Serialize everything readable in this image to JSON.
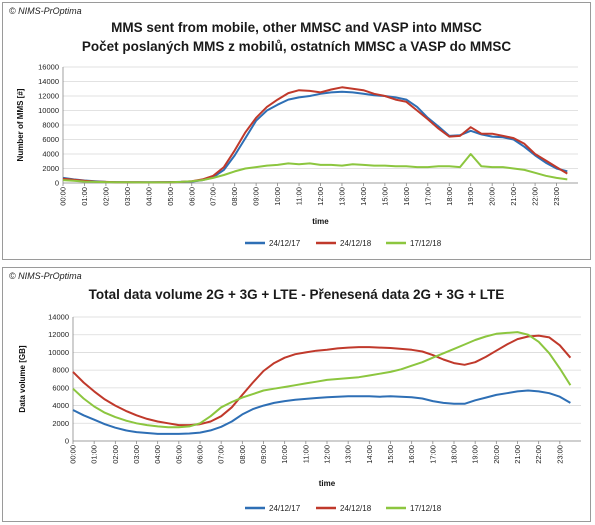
{
  "chart_data": [
    {
      "type": "line",
      "copyright": "© NIMS-PrOptima",
      "title": "MMS sent from mobile, other MMSC and VASP into MMSC",
      "subtitle": "Počet poslaných MMS z mobilů, ostatních MMSC a VASP do MMSC",
      "xlabel": "time",
      "ylabel": "Number of MMS [#]",
      "ylim": [
        0,
        16000
      ],
      "y_ticks": [
        "0",
        "2000",
        "4000",
        "6000",
        "8000",
        "10000",
        "12000",
        "14000",
        "16000"
      ],
      "x_ticks": [
        "00:00",
        "01:00",
        "02:00",
        "03:00",
        "04:00",
        "05:00",
        "06:00",
        "07:00",
        "08:00",
        "09:00",
        "10:00",
        "11:00",
        "12:00",
        "13:00",
        "14:00",
        "15:00",
        "16:00",
        "17:00",
        "18:00",
        "19:00",
        "20:00",
        "21:00",
        "22:00",
        "23:00"
      ],
      "grid": true,
      "legend_position": "bottom",
      "x": [
        0,
        0.5,
        1,
        1.5,
        2,
        2.5,
        3,
        3.5,
        4,
        4.5,
        5,
        5.5,
        6,
        6.5,
        7,
        7.5,
        8,
        8.5,
        9,
        9.5,
        10,
        10.5,
        11,
        11.5,
        12,
        12.5,
        13,
        13.5,
        14,
        14.5,
        15,
        15.5,
        16,
        16.5,
        17,
        17.5,
        18,
        18.5,
        19,
        19.5,
        20,
        20.5,
        21,
        21.5,
        22,
        22.5,
        23,
        23.5
      ],
      "series": [
        {
          "name": "24/12/17",
          "color": "#2e6fb5",
          "values": [
            700,
            500,
            350,
            250,
            150,
            120,
            100,
            100,
            100,
            100,
            120,
            150,
            200,
            400,
            800,
            1800,
            3800,
            6200,
            8600,
            10000,
            10800,
            11500,
            11800,
            12000,
            12300,
            12500,
            12600,
            12500,
            12300,
            12100,
            12000,
            11800,
            11500,
            10500,
            9000,
            7800,
            6500,
            6600,
            7200,
            6700,
            6400,
            6300,
            6000,
            5000,
            3800,
            2800,
            2000,
            1600
          ]
        },
        {
          "name": "24/12/18",
          "color": "#c0392b",
          "values": [
            600,
            450,
            300,
            200,
            150,
            100,
            100,
            90,
            80,
            90,
            100,
            150,
            250,
            500,
            1000,
            2200,
            4500,
            7000,
            9000,
            10500,
            11500,
            12400,
            12800,
            12700,
            12500,
            12900,
            13200,
            13000,
            12800,
            12300,
            12000,
            11500,
            11200,
            10000,
            8800,
            7500,
            6400,
            6500,
            7700,
            6800,
            6800,
            6500,
            6200,
            5400,
            4000,
            3100,
            2200,
            1300
          ]
        },
        {
          "name": "17/12/18",
          "color": "#8cc63f",
          "values": [
            400,
            300,
            200,
            150,
            120,
            100,
            90,
            80,
            80,
            80,
            100,
            150,
            250,
            400,
            700,
            1100,
            1600,
            2000,
            2200,
            2400,
            2500,
            2700,
            2600,
            2700,
            2500,
            2500,
            2400,
            2600,
            2500,
            2400,
            2400,
            2300,
            2300,
            2200,
            2200,
            2300,
            2300,
            2200,
            4000,
            2300,
            2200,
            2200,
            2000,
            1800,
            1400,
            1000,
            700,
            500
          ]
        }
      ]
    },
    {
      "type": "line",
      "copyright": "© NIMS-PrOptima",
      "title": "Total data volume 2G + 3G + LTE - Přenesená data 2G + 3G + LTE",
      "xlabel": "time",
      "ylabel": "Data volume [GB]",
      "ylim": [
        0,
        14000
      ],
      "y_ticks": [
        "0",
        "2000",
        "4000",
        "6000",
        "8000",
        "10000",
        "12000",
        "14000"
      ],
      "x_ticks": [
        "00:00",
        "01:00",
        "02:00",
        "03:00",
        "04:00",
        "05:00",
        "06:00",
        "07:00",
        "08:00",
        "09:00",
        "10:00",
        "11:00",
        "12:00",
        "13:00",
        "14:00",
        "15:00",
        "16:00",
        "17:00",
        "18:00",
        "19:00",
        "20:00",
        "21:00",
        "22:00",
        "23:00"
      ],
      "grid": true,
      "legend_position": "bottom",
      "x": [
        0,
        0.5,
        1,
        1.5,
        2,
        2.5,
        3,
        3.5,
        4,
        4.5,
        5,
        5.5,
        6,
        6.5,
        7,
        7.5,
        8,
        8.5,
        9,
        9.5,
        10,
        10.5,
        11,
        11.5,
        12,
        12.5,
        13,
        13.5,
        14,
        14.5,
        15,
        15.5,
        16,
        16.5,
        17,
        17.5,
        18,
        18.5,
        19,
        19.5,
        20,
        20.5,
        21,
        21.5,
        22,
        22.5,
        23,
        23.5
      ],
      "series": [
        {
          "name": "24/12/17",
          "color": "#2e6fb5",
          "values": [
            3500,
            2900,
            2400,
            1900,
            1500,
            1200,
            1000,
            900,
            800,
            800,
            800,
            850,
            950,
            1200,
            1600,
            2200,
            3000,
            3600,
            4000,
            4300,
            4500,
            4650,
            4750,
            4850,
            4950,
            5000,
            5050,
            5050,
            5050,
            5000,
            5050,
            5000,
            4950,
            4800,
            4500,
            4300,
            4200,
            4200,
            4600,
            4900,
            5200,
            5400,
            5600,
            5700,
            5600,
            5400,
            5000,
            4300
          ]
        },
        {
          "name": "24/12/18",
          "color": "#c0392b",
          "values": [
            7800,
            6600,
            5600,
            4700,
            4000,
            3400,
            2900,
            2500,
            2200,
            2000,
            1800,
            1800,
            1900,
            2200,
            2800,
            3800,
            5200,
            6600,
            7900,
            8800,
            9400,
            9800,
            10000,
            10200,
            10300,
            10450,
            10550,
            10600,
            10600,
            10550,
            10500,
            10400,
            10300,
            10100,
            9700,
            9200,
            8800,
            8600,
            8900,
            9500,
            10200,
            10900,
            11500,
            11800,
            11900,
            11700,
            10800,
            9400
          ]
        },
        {
          "name": "17/12/18",
          "color": "#8cc63f",
          "values": [
            5900,
            4800,
            3900,
            3200,
            2700,
            2300,
            2000,
            1800,
            1650,
            1550,
            1550,
            1650,
            2000,
            2800,
            3800,
            4400,
            4900,
            5300,
            5700,
            5900,
            6100,
            6300,
            6500,
            6700,
            6900,
            7000,
            7100,
            7200,
            7400,
            7600,
            7800,
            8100,
            8500,
            8900,
            9400,
            9900,
            10400,
            10900,
            11400,
            11800,
            12100,
            12200,
            12300,
            12000,
            11200,
            9900,
            8200,
            6300
          ]
        }
      ]
    }
  ]
}
